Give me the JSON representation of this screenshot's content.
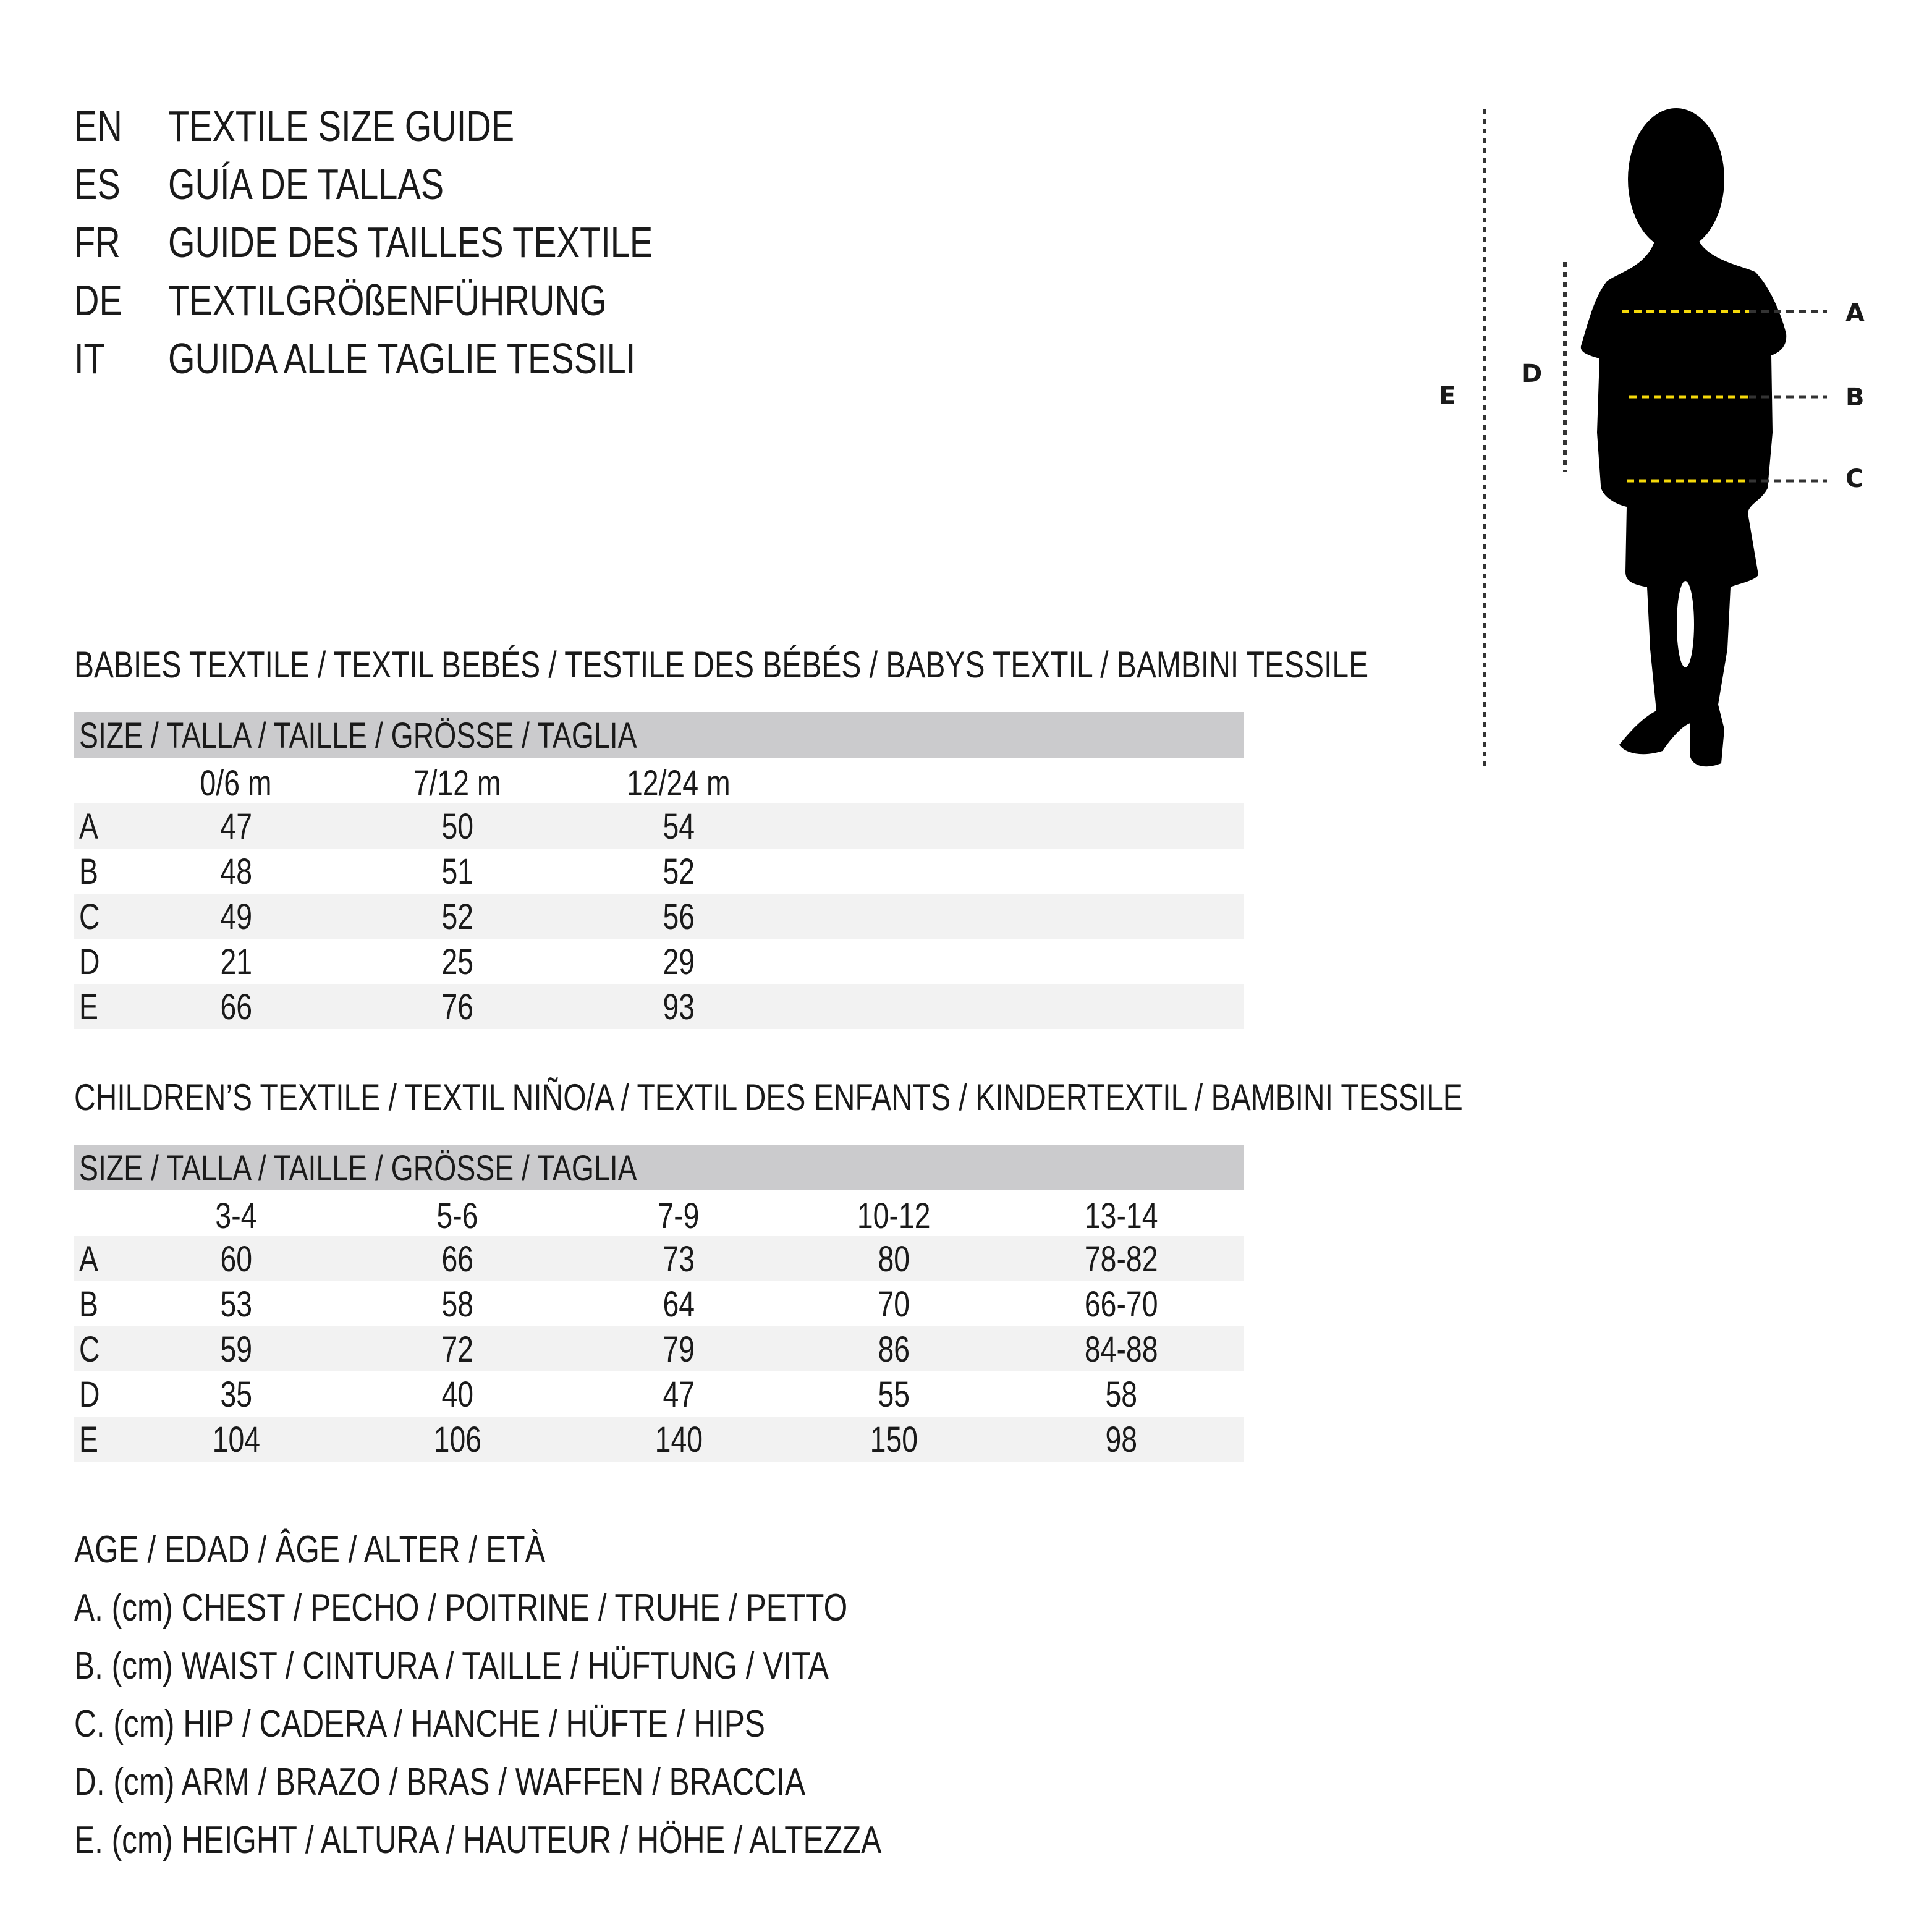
{
  "header": {
    "lines": [
      {
        "code": "EN",
        "text": "TEXTILE SIZE GUIDE"
      },
      {
        "code": "ES",
        "text": "GUÍA DE TALLAS"
      },
      {
        "code": "FR",
        "text": "GUIDE DES TAILLES TEXTILE"
      },
      {
        "code": "DE",
        "text": "TEXTILGRÖßENFÜHRUNG"
      },
      {
        "code": "IT",
        "text": "GUIDA ALLE TAGLIE TESSILI"
      }
    ]
  },
  "diagram": {
    "labels": {
      "a": "A",
      "b": "B",
      "c": "C",
      "d": "D",
      "e": "E"
    },
    "colors": {
      "silhouette": "#000000",
      "measure_line": "#f5d90a",
      "dotted": "#333333"
    }
  },
  "babies": {
    "title": "BABIES TEXTILE / TEXTIL BEBÉS / TESTILE DES BÉBÉS / BABYS TEXTIL / BAMBINI TESSILE",
    "size_header": "SIZE / TALLA / TAILLE / GRÖSSE / TAGLIA",
    "columns": [
      "0/6 m",
      "7/12 m",
      "12/24 m"
    ],
    "rows": [
      {
        "label": "A",
        "values": [
          "47",
          "50",
          "54"
        ]
      },
      {
        "label": "B",
        "values": [
          "48",
          "51",
          "52"
        ]
      },
      {
        "label": "C",
        "values": [
          "49",
          "52",
          "56"
        ]
      },
      {
        "label": "D",
        "values": [
          "21",
          "25",
          "29"
        ]
      },
      {
        "label": "E",
        "values": [
          "66",
          "76",
          "93"
        ]
      }
    ]
  },
  "children": {
    "title": "CHILDREN’S TEXTILE / TEXTIL NIÑO/A / TEXTIL DES ENFANTS / KINDERTEXTIL / BAMBINI TESSILE",
    "size_header": "SIZE / TALLA / TAILLE / GRÖSSE / TAGLIA",
    "columns": [
      "3-4",
      "5-6",
      "7-9",
      "10-12",
      "13-14"
    ],
    "rows": [
      {
        "label": "A",
        "values": [
          "60",
          "66",
          "73",
          "80",
          "78-82"
        ]
      },
      {
        "label": "B",
        "values": [
          "53",
          "58",
          "64",
          "70",
          "66-70"
        ]
      },
      {
        "label": "C",
        "values": [
          "59",
          "72",
          "79",
          "86",
          "84-88"
        ]
      },
      {
        "label": "D",
        "values": [
          "35",
          "40",
          "47",
          "55",
          "58"
        ]
      },
      {
        "label": "E",
        "values": [
          "104",
          "106",
          "140",
          "150",
          "98"
        ]
      }
    ]
  },
  "legend": [
    "AGE / EDAD / ÂGE / ALTER / ETÀ",
    "A. (cm) CHEST / PECHO / POITRINE / TRUHE / PETTO",
    "B. (cm) WAIST / CINTURA / TAILLE / HÜFTUNG / VITA",
    "C. (cm) HIP / CADERA / HANCHE / HÜFTE / HIPS",
    "D. (cm) ARM / BRAZO / BRAS / WAFFEN / BRACCIA",
    "E. (cm) HEIGHT / ALTURA / HAUTEUR / HÖHE / ALTEZZA"
  ]
}
